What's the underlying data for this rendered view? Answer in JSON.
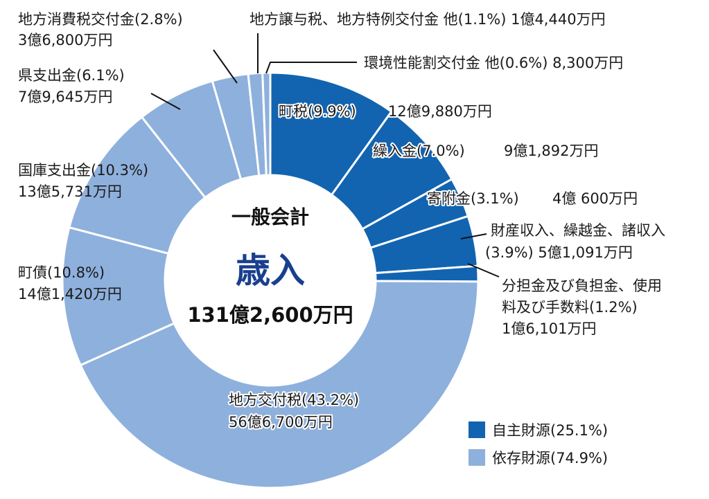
{
  "chart_data": {
    "type": "pie",
    "center": {
      "title": "一般会計",
      "main": "歳入",
      "total": "131億2,600万円"
    },
    "colors": {
      "自主財源": "#1264b0",
      "依存財源": "#8eb0dc"
    },
    "legend": {
      "placement": "bottom-right",
      "items": [
        {
          "group": "自主財源",
          "label": "自主財源(25.1%)"
        },
        {
          "group": "依存財源",
          "label": "依存財源(74.9%)"
        }
      ]
    },
    "slices": [
      {
        "name": "町税",
        "percent": 9.9,
        "group": "自主財源",
        "label1": "町税(9.9%)",
        "label2": "12億9,880万円"
      },
      {
        "name": "繰入金",
        "percent": 7.0,
        "group": "自主財源",
        "label1": "繰入金(7.0%)",
        "label2": "9億1,892万円"
      },
      {
        "name": "寄附金",
        "percent": 3.1,
        "group": "自主財源",
        "label1": "寄附金(3.1%)",
        "label2": "4億 600万円"
      },
      {
        "name": "財産収入、繰越金、諸収入",
        "percent": 3.9,
        "group": "自主財源",
        "label1": "財産収入、繰越金、諸収入",
        "label2": "(3.9%) 5億1,091万円"
      },
      {
        "name": "分担金及び負担金、使用料及び手数料",
        "percent": 1.2,
        "group": "自主財源",
        "label1": "分担金及び負担金、使用",
        "label2": "料及び手数料(1.2%)",
        "label3": "1億6,101万円"
      },
      {
        "name": "地方交付税",
        "percent": 43.2,
        "group": "依存財源",
        "label1": "地方交付税(43.2%)",
        "label2": "56億6,700万円"
      },
      {
        "name": "町債",
        "percent": 10.8,
        "group": "依存財源",
        "label1": "町債(10.8%)",
        "label2": "14億1,420万円"
      },
      {
        "name": "国庫支出金",
        "percent": 10.3,
        "group": "依存財源",
        "label1": "国庫支出金(10.3%)",
        "label2": "13億5,731万円"
      },
      {
        "name": "県支出金",
        "percent": 6.1,
        "group": "依存財源",
        "label1": "県支出金(6.1%)",
        "label2": "7億9,645万円"
      },
      {
        "name": "地方消費税交付金",
        "percent": 2.8,
        "group": "依存財源",
        "label1": "地方消費税交付金(2.8%)",
        "label2": "3億6,800万円"
      },
      {
        "name": "地方譲与税、地方特例交付金 他",
        "percent": 1.1,
        "group": "依存財源",
        "label1": "地方譲与税、地方特例交付金 他(1.1%) 1億4,440万円"
      },
      {
        "name": "環境性能割交付金 他",
        "percent": 0.6,
        "group": "依存財源",
        "label1": "環境性能割交付金 他(0.6%) 8,300万円"
      }
    ]
  }
}
